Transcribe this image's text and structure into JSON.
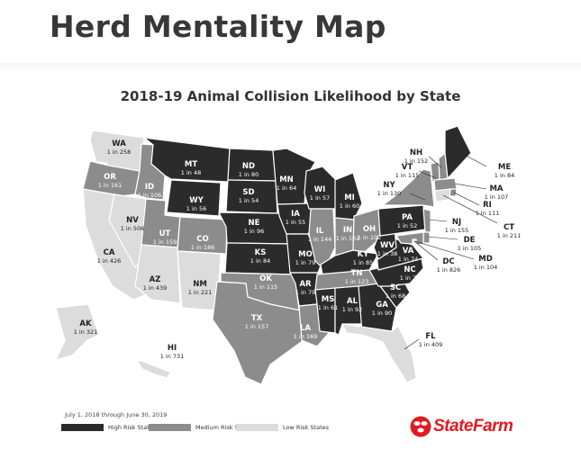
{
  "page": {
    "title": "Herd Mentality Map"
  },
  "map": {
    "title": "2018-19 Animal Collision Likelihood by State",
    "date_note": "July 1, 2018 through June 30, 2019",
    "colors": {
      "high": "#2b2b2b",
      "medium": "#8c8c8c",
      "low": "#dcdcdc",
      "brand": "#e01b22"
    },
    "legend": [
      {
        "key": "high",
        "label": "High Risk States"
      },
      {
        "key": "medium",
        "label": "Medium Risk States"
      },
      {
        "key": "low",
        "label": "Low Risk States"
      }
    ],
    "states": {
      "WA": {
        "abbr": "WA",
        "value": "1 in 258",
        "risk": "low"
      },
      "OR": {
        "abbr": "OR",
        "value": "1 in 161",
        "risk": "medium"
      },
      "CA": {
        "abbr": "CA",
        "value": "1 in 426",
        "risk": "low"
      },
      "NV": {
        "abbr": "NV",
        "value": "1 in 506",
        "risk": "low"
      },
      "ID": {
        "abbr": "ID",
        "value": "1 in 106",
        "risk": "medium"
      },
      "MT": {
        "abbr": "MT",
        "value": "1 in 48",
        "risk": "high"
      },
      "WY": {
        "abbr": "WY",
        "value": "1 in 56",
        "risk": "high"
      },
      "UT": {
        "abbr": "UT",
        "value": "1 in 159",
        "risk": "medium"
      },
      "AZ": {
        "abbr": "AZ",
        "value": "1 in 439",
        "risk": "low"
      },
      "CO": {
        "abbr": "CO",
        "value": "1 in 186",
        "risk": "medium"
      },
      "NM": {
        "abbr": "NM",
        "value": "1 in 221",
        "risk": "low"
      },
      "ND": {
        "abbr": "ND",
        "value": "1 in 80",
        "risk": "high"
      },
      "SD": {
        "abbr": "SD",
        "value": "1 in 54",
        "risk": "high"
      },
      "NE": {
        "abbr": "NE",
        "value": "1 in 96",
        "risk": "high"
      },
      "KS": {
        "abbr": "KS",
        "value": "1 in 84",
        "risk": "high"
      },
      "OK": {
        "abbr": "OK",
        "value": "1 in 115",
        "risk": "medium"
      },
      "TX": {
        "abbr": "TX",
        "value": "1 in 157",
        "risk": "medium"
      },
      "MN": {
        "abbr": "MN",
        "value": "1 in 64",
        "risk": "high"
      },
      "IA": {
        "abbr": "IA",
        "value": "1 in 55",
        "risk": "high"
      },
      "MO": {
        "abbr": "MO",
        "value": "1 in 79",
        "risk": "high"
      },
      "AR": {
        "abbr": "AR",
        "value": "1 in 79",
        "risk": "high"
      },
      "LA": {
        "abbr": "LA",
        "value": "1 in 169",
        "risk": "medium"
      },
      "WI": {
        "abbr": "WI",
        "value": "1 in 57",
        "risk": "high"
      },
      "IL": {
        "abbr": "IL",
        "value": "1 in 144",
        "risk": "medium"
      },
      "MI": {
        "abbr": "MI",
        "value": "1 in 60",
        "risk": "high"
      },
      "IN": {
        "abbr": "IN",
        "value": "1 in 102",
        "risk": "medium"
      },
      "OH": {
        "abbr": "OH",
        "value": "1 in 102",
        "risk": "medium"
      },
      "KY": {
        "abbr": "KY",
        "value": "1 in 85",
        "risk": "high"
      },
      "TN": {
        "abbr": "TN",
        "value": "1 in 123",
        "risk": "medium"
      },
      "MS": {
        "abbr": "MS",
        "value": "1 in 61",
        "risk": "high"
      },
      "AL": {
        "abbr": "AL",
        "value": "1 in 92",
        "risk": "high"
      },
      "GA": {
        "abbr": "GA",
        "value": "1 in 90",
        "risk": "high"
      },
      "FL": {
        "abbr": "FL",
        "value": "1 in 409",
        "risk": "low"
      },
      "SC": {
        "abbr": "SC",
        "value": "1 in 68",
        "risk": "high"
      },
      "NC": {
        "abbr": "NC",
        "value": "1 in 76",
        "risk": "high"
      },
      "VA": {
        "abbr": "VA",
        "value": "1 in 74",
        "risk": "high"
      },
      "WV": {
        "abbr": "WV",
        "value": "1 in 38",
        "risk": "high"
      },
      "PA": {
        "abbr": "PA",
        "value": "1 in 52",
        "risk": "high"
      },
      "NY": {
        "abbr": "NY",
        "value": "1 in 130",
        "risk": "medium"
      },
      "VT": {
        "abbr": "VT",
        "value": "1 in 115",
        "risk": "medium"
      },
      "NH": {
        "abbr": "NH",
        "value": "1 in 152",
        "risk": "medium"
      },
      "ME": {
        "abbr": "ME",
        "value": "1 in 84",
        "risk": "high"
      },
      "MA": {
        "abbr": "MA",
        "value": "1 in 107",
        "risk": "medium"
      },
      "RI": {
        "abbr": "RI",
        "value": "1 in 111",
        "risk": "medium"
      },
      "CT": {
        "abbr": "CT",
        "value": "1 in 211",
        "risk": "low"
      },
      "NJ": {
        "abbr": "NJ",
        "value": "1 in 155",
        "risk": "medium"
      },
      "DE": {
        "abbr": "DE",
        "value": "1 in 105",
        "risk": "medium"
      },
      "MD": {
        "abbr": "MD",
        "value": "1 in 104",
        "risk": "medium"
      },
      "DC": {
        "abbr": "DC",
        "value": "1 in 826",
        "risk": "low"
      },
      "AK": {
        "abbr": "AK",
        "value": "1 in 321",
        "risk": "low"
      },
      "HI": {
        "abbr": "HI",
        "value": "1 in 731",
        "risk": "low"
      }
    }
  },
  "brand": {
    "name": "StateFarm",
    "logo_icon": "three-ovals-logo-icon"
  }
}
